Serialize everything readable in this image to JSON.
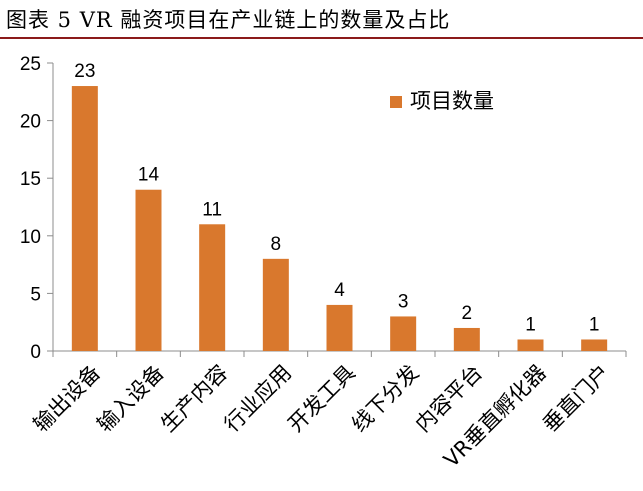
{
  "figure": {
    "title": "图表 5 VR 融资项目在产业链上的数量及占比"
  },
  "chart_data": {
    "type": "bar",
    "categories": [
      "输出设备",
      "输入设备",
      "生产内容",
      "行业应用",
      "开发工具",
      "线下分发",
      "内容平台",
      "VR垂直孵化器",
      "垂直门户"
    ],
    "series": [
      {
        "name": "项目数量",
        "values": [
          23,
          14,
          11,
          8,
          4,
          3,
          2,
          1,
          1
        ]
      }
    ],
    "ylim": [
      0,
      25
    ],
    "yticks": [
      0,
      5,
      10,
      15,
      20,
      25
    ],
    "grid": false,
    "legend_position": "top-right",
    "colors": {
      "bar": "#D9782D",
      "axis": "#8c8c8c",
      "title_rule": "#8b1a1a"
    }
  }
}
